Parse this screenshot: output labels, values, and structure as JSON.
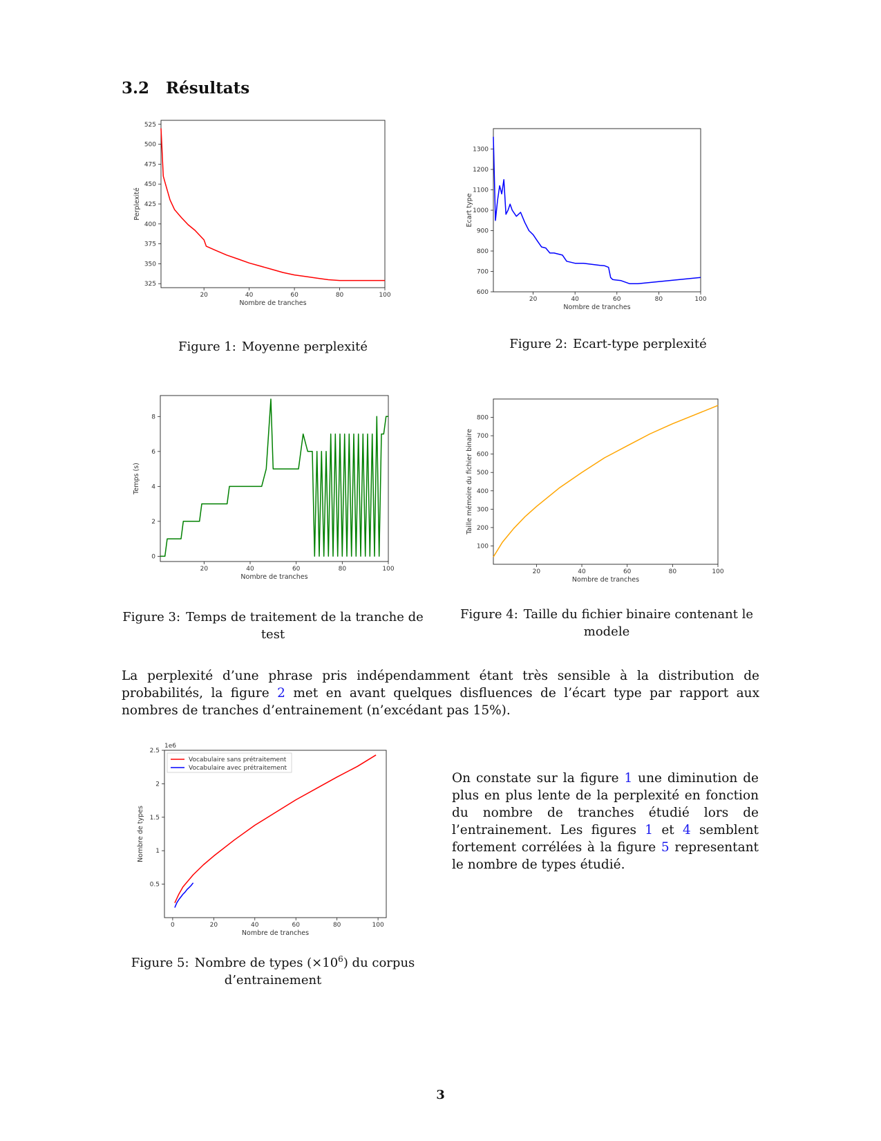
{
  "section": {
    "number": "3.2",
    "title": "Résultats"
  },
  "figures": [
    {
      "id": "fig1",
      "label": "Figure 1:",
      "caption": "Moyenne perplexité"
    },
    {
      "id": "fig2",
      "label": "Figure 2:",
      "caption": "Ecart-type perplexité"
    },
    {
      "id": "fig3",
      "label": "Figure 3:",
      "caption": "Temps de traitement de la tranche de test"
    },
    {
      "id": "fig4",
      "label": "Figure 4:",
      "caption": "Taille du fichier binaire contenant le modele"
    },
    {
      "id": "fig5",
      "label": "Figure 5:",
      "caption_pre": "Nombre de types (×10",
      "caption_sup": "6",
      "caption_post": ") du corpus d’entrainement"
    }
  ],
  "paragraph1": {
    "before_ref": "La perplexité d’une phrase pris indépendamment étant très sensible à la distribution de probabilités, la figure ",
    "ref": "2",
    "after_ref": " met en avant quelques disfluences de l’écart type par rapport aux nombres de tranches d’entrainement (n’excédant pas 15%)."
  },
  "paragraph2": {
    "t1": "On constate sur la figure ",
    "r1": "1",
    "t2": " une diminution de plus en plus lente de la perplexité en fonction du nombre de tranches étudié lors de l’entrainement. Les figures ",
    "r2": "1",
    "t3": " et ",
    "r3": "4",
    "t4": " semblent fortement corrélées à la figure ",
    "r4": "5",
    "t5": " representant le nombre de types étudié."
  },
  "page_number": "3",
  "chart_data": [
    {
      "id": "fig1",
      "type": "line",
      "color": "#ff0000",
      "xlabel": "Nombre de tranches",
      "ylabel": "Perplexité",
      "xlim": [
        1,
        100
      ],
      "ylim": [
        320,
        530
      ],
      "xticks": [
        20,
        40,
        60,
        80,
        100
      ],
      "yticks": [
        325,
        350,
        375,
        400,
        425,
        450,
        475,
        500,
        525
      ],
      "x": [
        1,
        2,
        3,
        5,
        7,
        10,
        13,
        16,
        20,
        21,
        25,
        30,
        35,
        40,
        45,
        50,
        55,
        60,
        65,
        70,
        75,
        80,
        85,
        90,
        95,
        100
      ],
      "y": [
        520,
        460,
        450,
        430,
        418,
        408,
        399,
        392,
        380,
        372,
        367,
        361,
        356,
        351,
        347,
        343,
        339,
        336,
        334,
        332,
        330,
        329,
        329,
        329,
        329,
        329
      ]
    },
    {
      "id": "fig2",
      "type": "line",
      "color": "#0000ff",
      "xlabel": "Nombre de tranches",
      "ylabel": "Ecart type",
      "xlim": [
        1,
        100
      ],
      "ylim": [
        600,
        1400
      ],
      "xticks": [
        20,
        40,
        60,
        80,
        100
      ],
      "yticks": [
        600,
        700,
        800,
        900,
        1000,
        1100,
        1200,
        1300
      ],
      "x": [
        1,
        2,
        3,
        4,
        5,
        6,
        7,
        8,
        9,
        10,
        12,
        14,
        16,
        18,
        20,
        22,
        24,
        26,
        28,
        30,
        32,
        34,
        36,
        40,
        44,
        48,
        52,
        54,
        56,
        57,
        58,
        62,
        66,
        68,
        70,
        75,
        80,
        85,
        90,
        95,
        100
      ],
      "y": [
        1360,
        950,
        1050,
        1120,
        1080,
        1150,
        980,
        1000,
        1030,
        1000,
        970,
        990,
        940,
        900,
        880,
        850,
        820,
        815,
        790,
        790,
        785,
        780,
        750,
        740,
        740,
        735,
        730,
        728,
        720,
        670,
        660,
        655,
        640,
        640,
        640,
        645,
        650,
        655,
        660,
        665,
        670
      ]
    },
    {
      "id": "fig3",
      "type": "line",
      "color": "#008000",
      "xlabel": "Nombre de tranches",
      "ylabel": "Temps (s)",
      "xlim": [
        1,
        100
      ],
      "ylim": [
        -0.3,
        9.2
      ],
      "xticks": [
        20,
        40,
        60,
        80,
        100
      ],
      "yticks": [
        0,
        2,
        4,
        6,
        8
      ],
      "x": [
        1,
        3,
        4,
        10,
        11,
        18,
        19,
        30,
        31,
        45,
        47,
        49,
        50,
        61,
        63,
        65,
        67,
        68,
        69,
        70,
        71,
        72,
        73,
        74,
        75,
        76,
        77,
        78,
        79,
        80,
        81,
        82,
        83,
        84,
        85,
        86,
        87,
        88,
        89,
        90,
        91,
        92,
        93,
        94,
        95,
        96,
        97,
        98,
        99,
        100
      ],
      "y": [
        0,
        0,
        1,
        1,
        2,
        2,
        3,
        3,
        4,
        4,
        5,
        9,
        5,
        5,
        7,
        6,
        6,
        0,
        6,
        0,
        6,
        0,
        6,
        0,
        7,
        0,
        7,
        0,
        7,
        0,
        7,
        0,
        7,
        0,
        7,
        0,
        7,
        0,
        7,
        0,
        7,
        0,
        7,
        0,
        8,
        0,
        7,
        7,
        8,
        8
      ]
    },
    {
      "id": "fig4",
      "type": "line",
      "color": "#ffa500",
      "xlabel": "Nombre de tranches",
      "ylabel": "Taille mémoire du fichier binaire",
      "xlim": [
        1,
        100
      ],
      "ylim": [
        0,
        900
      ],
      "xticks": [
        20,
        40,
        60,
        80,
        100
      ],
      "yticks": [
        100,
        200,
        300,
        400,
        500,
        600,
        700,
        800
      ],
      "x": [
        1,
        5,
        10,
        15,
        20,
        30,
        40,
        50,
        60,
        70,
        80,
        90,
        100
      ],
      "y": [
        40,
        120,
        195,
        260,
        315,
        415,
        500,
        580,
        645,
        710,
        765,
        815,
        865
      ]
    },
    {
      "id": "fig5",
      "type": "line",
      "xlabel": "Nombre de tranches",
      "ylabel": "Nombre de types",
      "scale_label": "1e6",
      "xlim": [
        -4,
        104
      ],
      "ylim": [
        0,
        2.5
      ],
      "xticks": [
        0,
        20,
        40,
        60,
        80,
        100
      ],
      "yticks": [
        0.5,
        1.0,
        1.5,
        2.0,
        2.5
      ],
      "legend_position": "upper-left",
      "series": [
        {
          "name": "Vocabulaire sans prétraitement",
          "color": "#ff0000",
          "x": [
            1,
            3,
            5,
            10,
            15,
            20,
            30,
            40,
            50,
            60,
            70,
            80,
            90,
            99
          ],
          "y": [
            0.22,
            0.35,
            0.46,
            0.64,
            0.79,
            0.92,
            1.16,
            1.38,
            1.57,
            1.76,
            1.93,
            2.1,
            2.26,
            2.43
          ]
        },
        {
          "name": "Vocabulaire avec prétraitement",
          "color": "#0000ff",
          "x": [
            1,
            2,
            3,
            4,
            5,
            6,
            7,
            8,
            9,
            10
          ],
          "y": [
            0.15,
            0.22,
            0.27,
            0.31,
            0.35,
            0.38,
            0.42,
            0.45,
            0.48,
            0.52
          ]
        }
      ]
    }
  ]
}
